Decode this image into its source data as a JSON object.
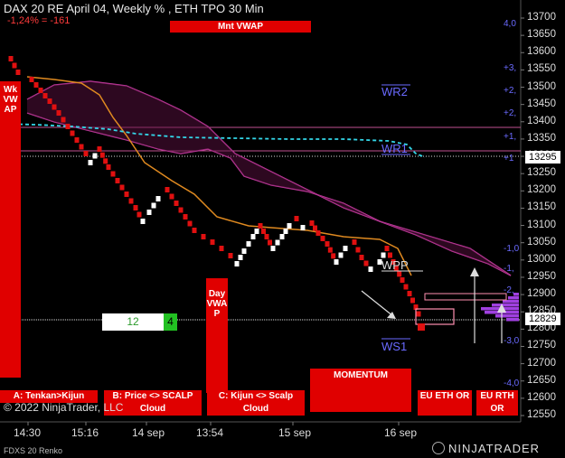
{
  "header": {
    "title": "DAX 20   RE April 04, Weekly % , ETH TPO 30 Min",
    "change": "-1,24% = -161",
    "vwap_label": "Mnt VWAP"
  },
  "left_tag": "Wk\nVW\nAP",
  "day_vwap_tag": "Day\nVWA\nP",
  "buttons": [
    {
      "label": "A: Tenkan>Kijun"
    },
    {
      "label": "B: Price <> SCALP Cloud"
    },
    {
      "label": "C: Kijun <> Scalp Cloud"
    },
    {
      "label": "MOMENTUM"
    },
    {
      "label": "EU ETH OR"
    },
    {
      "label": "EU RTH OR"
    }
  ],
  "copyright": "© 2022 NinjaTrader, LLC",
  "counter": {
    "left": "12",
    "right": "4"
  },
  "instrument": "FDXS 20 Renko",
  "brand": "NINJATRADER",
  "chart_data": {
    "type": "line",
    "price_axis": {
      "min": 12550,
      "max": 13700,
      "step": 50
    },
    "price_ticks": [
      13700,
      13650,
      13600,
      13550,
      13500,
      13450,
      13400,
      13350,
      13300,
      13250,
      13200,
      13150,
      13100,
      13050,
      13000,
      12950,
      12900,
      12850,
      12800,
      12750,
      12700,
      12650,
      12600,
      12550
    ],
    "current_price": "12829",
    "marker_price": "13295",
    "time_ticks": [
      "14:30",
      "15:16",
      "14 sep",
      "13:54",
      "15 sep",
      "16 sep"
    ],
    "level_labels": {
      "wr2": "WR2",
      "wr1": "WR1",
      "wpp": "WPP",
      "ws1": "WS1"
    },
    "std_labels": [
      "4,0",
      "+3,",
      "+2,",
      "+2,",
      "+1,",
      "+1",
      "-1,0",
      "-1,",
      "-2,",
      "-3,0",
      "-4,0"
    ]
  }
}
